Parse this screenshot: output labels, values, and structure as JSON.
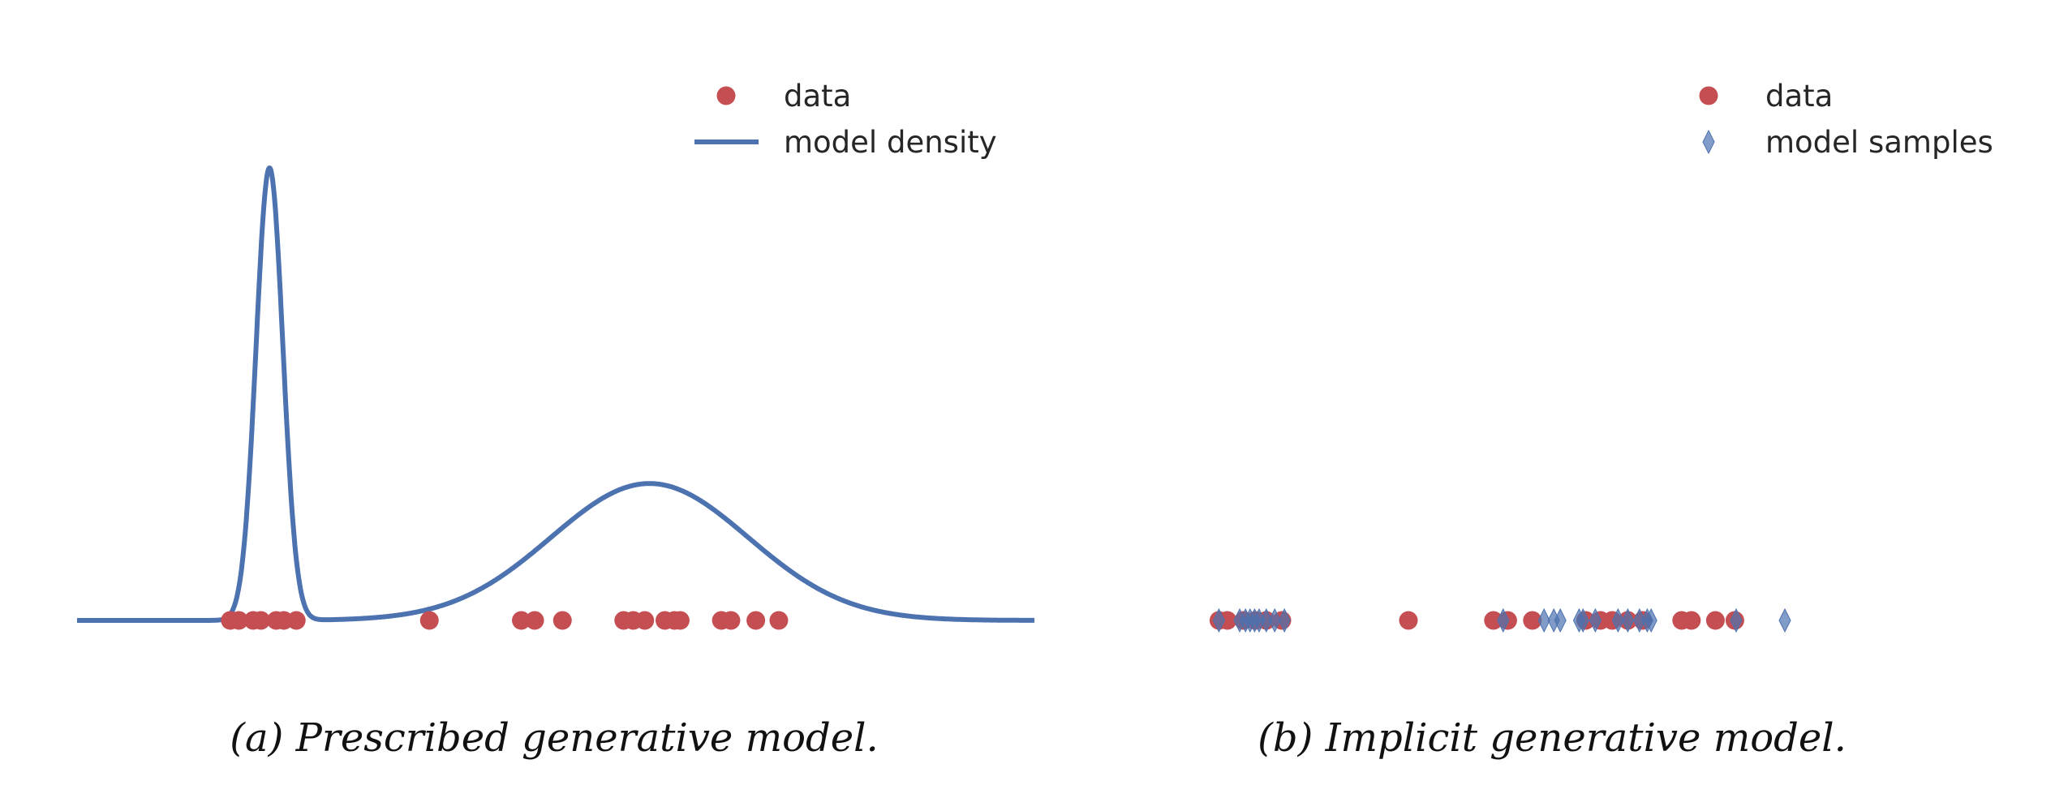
{
  "chart_data": [
    {
      "type": "line",
      "panel": "a",
      "caption": "(a) Prescribed generative model.",
      "xlim": [
        0,
        100
      ],
      "grid": false,
      "legend_placement": "top-right",
      "legend": {
        "data": "data",
        "model": "model density"
      },
      "model_density": {
        "kind": "gaussian-mixture",
        "components": [
          {
            "weight": 0.31,
            "mean": 20.1,
            "sd": 1.4
          },
          {
            "weight": 0.69,
            "mean": 59.8,
            "sd": 10.3
          }
        ]
      },
      "data_points": [
        16.0,
        16.9,
        18.4,
        19.2,
        20.8,
        21.6,
        22.9,
        36.8,
        46.4,
        47.8,
        50.7,
        57.1,
        58.1,
        59.3,
        61.4,
        62.4,
        63.0,
        67.3,
        68.3,
        70.9,
        73.3
      ]
    },
    {
      "type": "scatter",
      "panel": "b",
      "caption": "(b) Implicit generative model.",
      "xlim": [
        0,
        100
      ],
      "grid": false,
      "legend_placement": "top-right",
      "legend": {
        "data": "data",
        "model": "model samples"
      },
      "data_points": [
        2.8,
        4.1,
        6.6,
        8.4,
        10.1,
        12.5,
        32.0,
        45.1,
        47.3,
        51.1,
        59.3,
        61.6,
        63.4,
        65.8,
        68.1,
        74.1,
        75.6,
        79.3,
        82.3
      ],
      "model_samples": [
        2.8,
        6.0,
        6.9,
        7.6,
        8.3,
        9.0,
        10.1,
        11.4,
        12.9,
        46.6,
        52.9,
        54.4,
        55.4,
        58.3,
        58.9,
        60.8,
        64.3,
        65.8,
        67.6,
        68.8,
        69.4,
        82.5,
        90.0
      ]
    }
  ],
  "colors": {
    "data": "#C44E52",
    "model": "#4C72B0"
  }
}
